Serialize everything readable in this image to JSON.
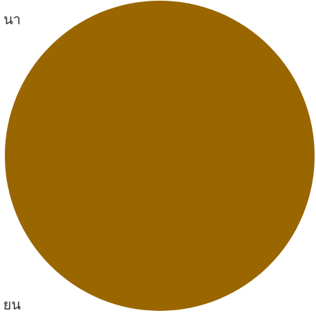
{
  "chart_data": {
    "type": "pie",
    "title": "",
    "legend": "none",
    "slices": [
      {
        "label": "นา",
        "value": 100,
        "color": "#996600"
      },
      {
        "label": "ยน",
        "value": 0,
        "color": "#996600"
      }
    ]
  }
}
